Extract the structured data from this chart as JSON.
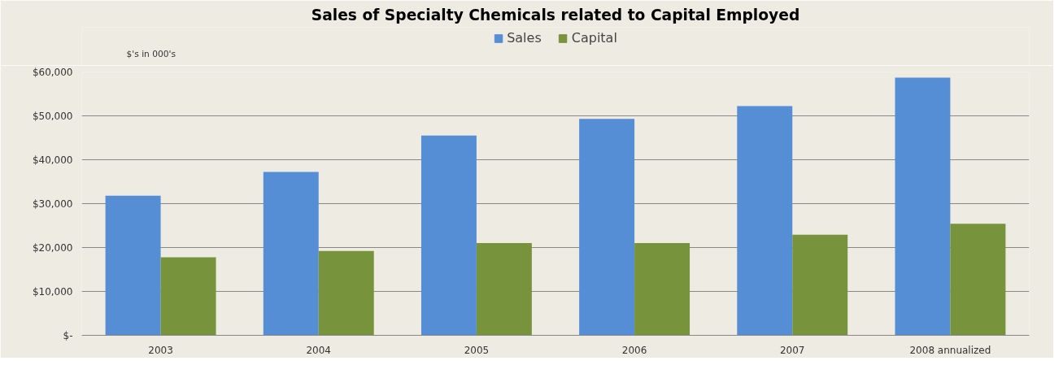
{
  "chart_data": {
    "type": "bar",
    "title": "Sales of Specialty Chemicals related to Capital Employed",
    "ylabel": "$'s in 000's",
    "categories": [
      "2003",
      "2004",
      "2005",
      "2006",
      "2007",
      "2008 annualized"
    ],
    "series": [
      {
        "name": "Sales",
        "color": "#558ed5",
        "values": [
          31800,
          37200,
          45500,
          49300,
          52200,
          58700
        ]
      },
      {
        "name": "Capital",
        "color": "#77933c",
        "values": [
          17800,
          19200,
          21000,
          21000,
          22900,
          25400
        ]
      }
    ],
    "ylim": [
      0,
      60000
    ],
    "yticks": [
      {
        "value": 0,
        "label": "$-"
      },
      {
        "value": 10000,
        "label": "$10,000"
      },
      {
        "value": 20000,
        "label": "$20,000"
      },
      {
        "value": 30000,
        "label": "$30,000"
      },
      {
        "value": 40000,
        "label": "$40,000"
      },
      {
        "value": 50000,
        "label": "$50,000"
      },
      {
        "value": 60000,
        "label": "$60,000"
      }
    ],
    "grid": "y",
    "legend": "top"
  }
}
